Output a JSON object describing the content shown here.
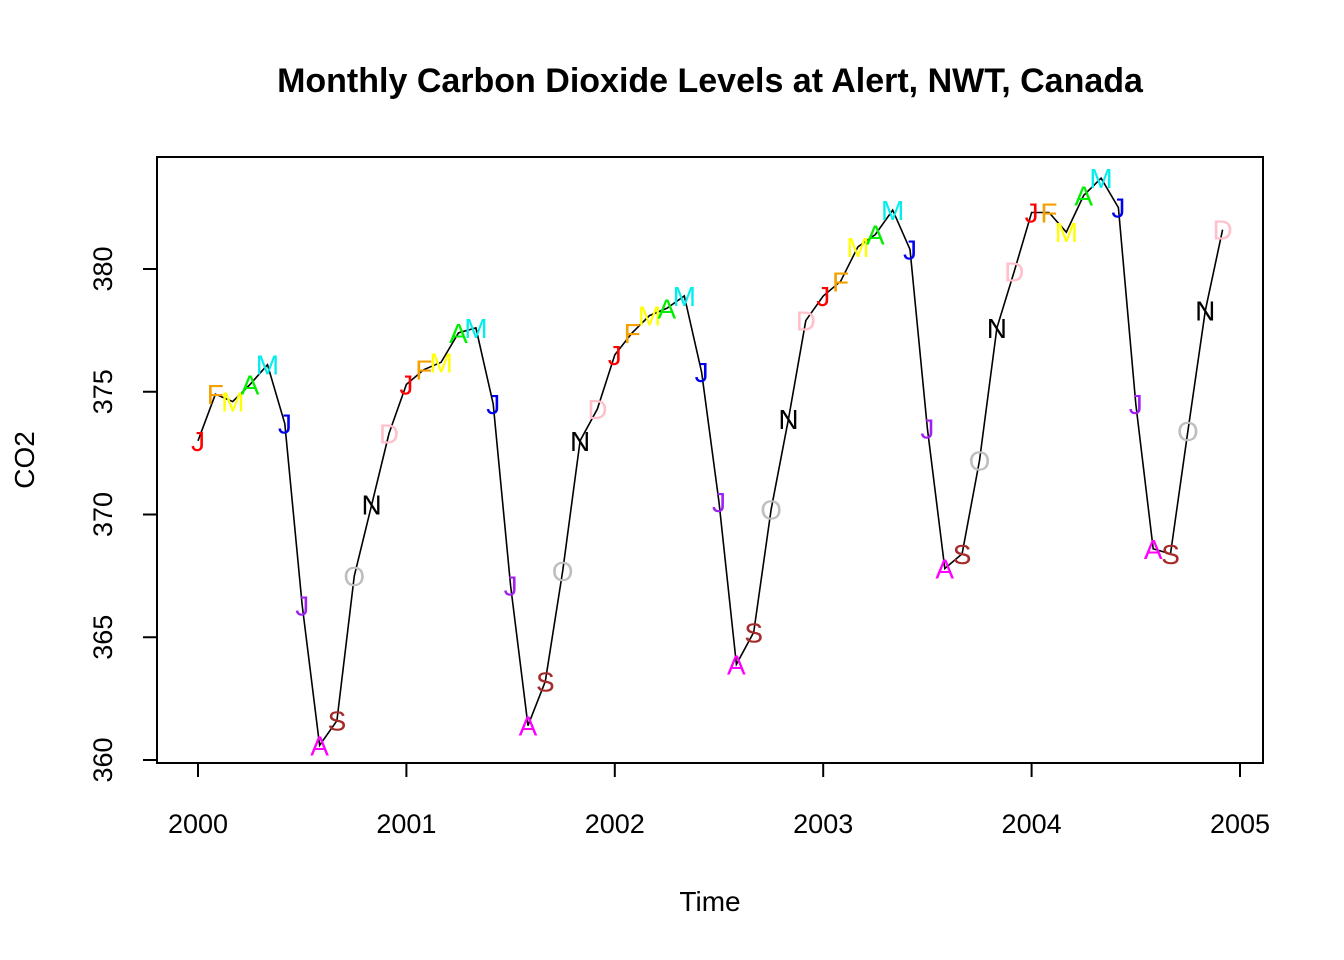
{
  "chart_data": {
    "type": "line",
    "title": "Monthly Carbon Dioxide Levels at Alert, NWT, Canada",
    "xlabel": "Time",
    "ylabel": "CO2",
    "xlim": [
      2000,
      2005
    ],
    "ylim": [
      360,
      385
    ],
    "x_ticks": [
      "2000",
      "2001",
      "2002",
      "2003",
      "2004",
      "2005"
    ],
    "y_ticks": [
      "360",
      "365",
      "370",
      "375",
      "380"
    ],
    "start_year": 2000,
    "month_labels": [
      "J",
      "F",
      "M",
      "A",
      "M",
      "J",
      "J",
      "A",
      "S",
      "O",
      "N",
      "D"
    ],
    "month_colors": [
      "#ff0000",
      "#f4a000",
      "#ffff00",
      "#00ee00",
      "#00eeee",
      "#0000ee",
      "#a020f0",
      "#ff00ff",
      "#a52a2a",
      "#bebebe",
      "#000000",
      "#ffc0cb"
    ],
    "series": [
      {
        "values": [
          373.0,
          374.9,
          374.6,
          375.3,
          376.1,
          373.7,
          366.3,
          360.6,
          361.6,
          367.5,
          370.4,
          373.3,
          375.3,
          375.9,
          376.2,
          377.4,
          377.6,
          374.5,
          367.1,
          361.4,
          363.2,
          367.7,
          373.0,
          374.3,
          376.5,
          377.4,
          378.1,
          378.4,
          378.9,
          375.8,
          370.5,
          363.9,
          365.2,
          370.2,
          373.9,
          377.9,
          378.9,
          379.5,
          380.9,
          381.4,
          382.4,
          380.8,
          373.5,
          367.8,
          368.4,
          372.2,
          377.6,
          379.9,
          382.3,
          382.3,
          381.5,
          383.0,
          383.7,
          382.5,
          374.5,
          368.6,
          368.4,
          373.4,
          378.3,
          381.6
        ]
      }
    ]
  }
}
